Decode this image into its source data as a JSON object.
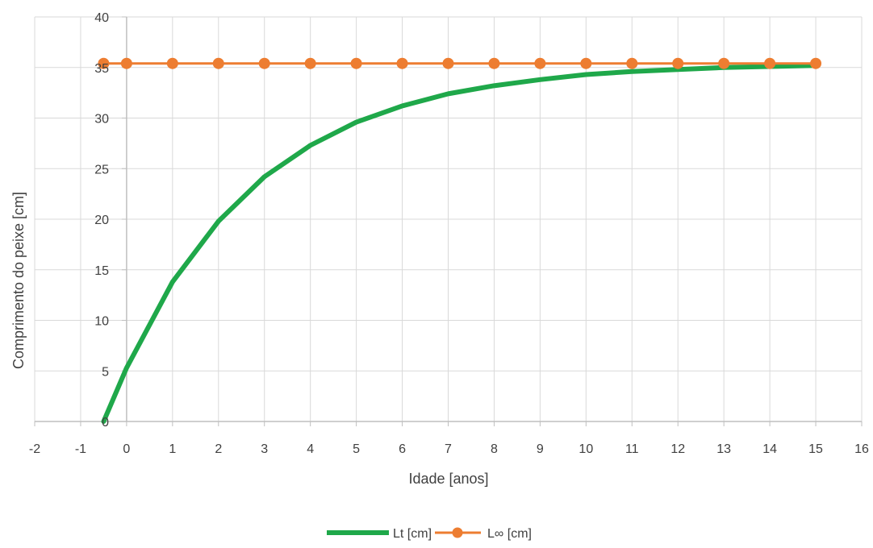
{
  "chart_data": {
    "type": "line",
    "title": "",
    "xlabel": "Idade [anos]",
    "ylabel": "Comprimento do peixe [cm]",
    "xlim": [
      -2,
      16
    ],
    "ylim": [
      0,
      40
    ],
    "xticks": [
      -2,
      -1,
      0,
      1,
      2,
      3,
      4,
      5,
      6,
      7,
      8,
      9,
      10,
      11,
      12,
      13,
      14,
      15,
      16
    ],
    "yticks": [
      0,
      5,
      10,
      15,
      20,
      25,
      30,
      35,
      40
    ],
    "grid": true,
    "legend": "bottom",
    "x": [
      -0.5,
      0,
      1,
      2,
      3,
      4,
      5,
      6,
      7,
      8,
      9,
      10,
      11,
      12,
      13,
      14,
      15
    ],
    "series": [
      {
        "name": "Lt [cm]",
        "color": "#1fa84a",
        "marker": "none",
        "values": [
          0,
          5.3,
          13.8,
          19.8,
          24.2,
          27.3,
          29.6,
          31.2,
          32.4,
          33.2,
          33.8,
          34.3,
          34.6,
          34.8,
          35.0,
          35.1,
          35.2
        ]
      },
      {
        "name": "L∞ [cm]",
        "color": "#ed7d31",
        "marker": "circle",
        "values": [
          35.4,
          35.4,
          35.4,
          35.4,
          35.4,
          35.4,
          35.4,
          35.4,
          35.4,
          35.4,
          35.4,
          35.4,
          35.4,
          35.4,
          35.4,
          35.4,
          35.4
        ]
      }
    ]
  }
}
